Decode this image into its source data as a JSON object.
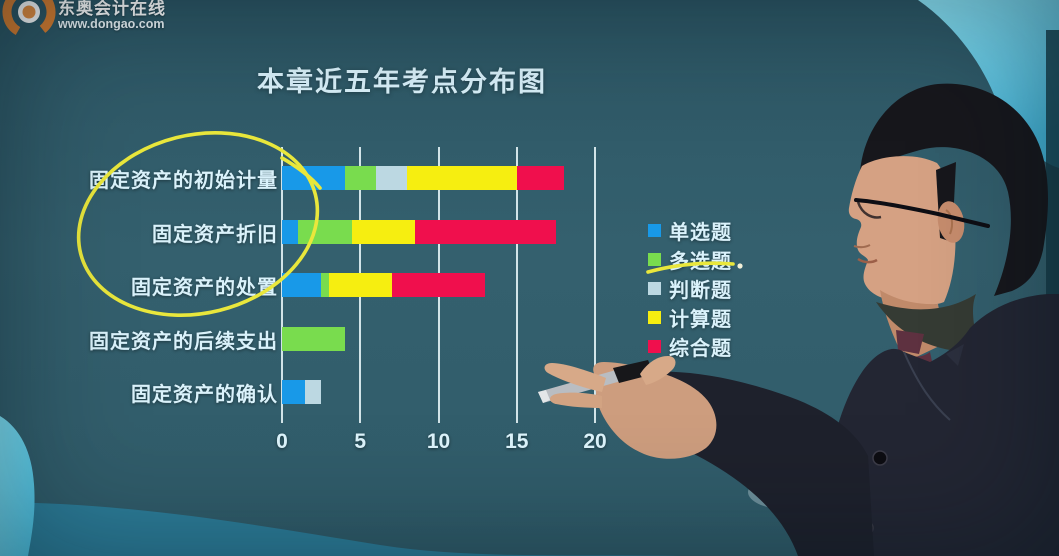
{
  "branding": {
    "site_name": "东奥会计在线",
    "site_url": "www.dongao.com",
    "logo_color": "#da7f30"
  },
  "chart_data": {
    "type": "bar",
    "variant": "horizontal-stacked",
    "title": "本章近五年考点分布图",
    "categories": [
      "固定资产的初始计量",
      "固定资产折旧",
      "固定资产的处置",
      "固定资产的后续支出",
      "固定资产的确认"
    ],
    "series": [
      {
        "name": "单选题",
        "color": "#1899e8",
        "values": [
          4,
          1,
          2.5,
          0,
          1.5
        ]
      },
      {
        "name": "多选题",
        "color": "#79dc4e",
        "values": [
          2,
          3.5,
          0.5,
          4,
          0
        ]
      },
      {
        "name": "判断题",
        "color": "#bcd8e2",
        "values": [
          2,
          0,
          0,
          0,
          1
        ]
      },
      {
        "name": "计算题",
        "color": "#f6ee10",
        "values": [
          7,
          4,
          4,
          0,
          0
        ]
      },
      {
        "name": "综合题",
        "color": "#f00f4d",
        "values": [
          3,
          9,
          6,
          0,
          0
        ]
      }
    ],
    "x_ticks": [
      0,
      5,
      10,
      15,
      20
    ],
    "xlim": [
      0,
      20
    ],
    "totals": [
      18,
      17.5,
      13,
      4,
      2.5
    ],
    "legend_position": "right-middle",
    "grid": "vertical-lines"
  },
  "annotations": {
    "ellipse_highlight": {
      "around": [
        "固定资产的初始计量",
        "固定资产折旧"
      ],
      "color": "#e9e73c"
    },
    "legend_underline": {
      "under": "多选题",
      "color": "#e9e73c"
    }
  },
  "presenter": {
    "description": "讲师手持讲解笔指向图表",
    "features": [
      "dark-suit",
      "maroon-tie",
      "glasses",
      "pointer-pen"
    ]
  }
}
